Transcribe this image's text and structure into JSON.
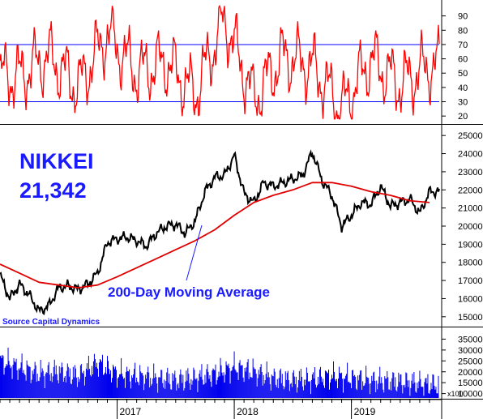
{
  "chart_data": [
    {
      "type": "line",
      "panel": "oscillator",
      "ylim": [
        15,
        100
      ],
      "yticks": [
        20,
        30,
        40,
        50,
        60,
        70,
        80,
        90
      ],
      "reference_lines": [
        70,
        30
      ],
      "colors": {
        "series": "#ff0000",
        "reference": "#0000ff"
      },
      "x": [
        "2016-03",
        "2016-06",
        "2016-09",
        "2016-12",
        "2017-03",
        "2017-06",
        "2017-09",
        "2017-12",
        "2018-03",
        "2018-06",
        "2018-09",
        "2018-12",
        "2019-03",
        "2019-06",
        "2019-09"
      ],
      "values": [
        48,
        62,
        40,
        78,
        50,
        58,
        35,
        88,
        32,
        62,
        55,
        25,
        60,
        42,
        55
      ]
    },
    {
      "type": "line",
      "panel": "price",
      "title": "NIKKEI",
      "subtitle": "21,342",
      "source": "Source Capital Dynamics",
      "annotation": "200-Day Moving Average",
      "ylim": [
        14500,
        25500
      ],
      "yticks": [
        15000,
        16000,
        17000,
        18000,
        19000,
        20000,
        21000,
        22000,
        23000,
        24000,
        25000
      ],
      "ytick_labels": [
        "15000",
        "16000",
        "17000",
        "18000",
        "19000",
        "20000",
        "21000",
        "22000",
        "23000",
        "24000",
        "25000"
      ],
      "colors": {
        "price": "#000000",
        "moving_average": "#e00000",
        "text": "#1a1aff"
      },
      "series": [
        {
          "name": "Nikkei",
          "x": [
            "2016-01",
            "2016-02",
            "2016-03",
            "2016-04",
            "2016-05",
            "2016-06",
            "2016-07",
            "2016-08",
            "2016-09",
            "2016-10",
            "2016-11",
            "2016-12",
            "2017-01",
            "2017-02",
            "2017-03",
            "2017-04",
            "2017-05",
            "2017-06",
            "2017-07",
            "2017-08",
            "2017-09",
            "2017-10",
            "2017-11",
            "2017-12",
            "2018-01",
            "2018-02",
            "2018-03",
            "2018-04",
            "2018-05",
            "2018-06",
            "2018-07",
            "2018-08",
            "2018-09",
            "2018-10",
            "2018-11",
            "2018-12",
            "2019-01",
            "2019-02",
            "2019-03",
            "2019-04",
            "2019-05",
            "2019-06",
            "2019-07",
            "2019-08",
            "2019-09"
          ],
          "values": [
            17300,
            16000,
            16800,
            16200,
            15300,
            15600,
            16600,
            16700,
            16500,
            16800,
            17400,
            19100,
            19300,
            19400,
            19200,
            18900,
            19600,
            20000,
            20100,
            19600,
            20300,
            21900,
            22700,
            22800,
            23900,
            21800,
            21300,
            22400,
            22200,
            22400,
            22600,
            22800,
            24100,
            22500,
            21700,
            20000,
            20600,
            21300,
            21200,
            22200,
            21100,
            21300,
            21500,
            20700,
            21900
          ]
        },
        {
          "name": "200-Day Moving Average",
          "x": [
            "2016-01",
            "2016-03",
            "2016-05",
            "2016-07",
            "2016-09",
            "2016-11",
            "2017-01",
            "2017-03",
            "2017-05",
            "2017-07",
            "2017-09",
            "2017-11",
            "2018-01",
            "2018-03",
            "2018-05",
            "2018-07",
            "2018-09",
            "2018-11",
            "2019-01",
            "2019-03",
            "2019-05",
            "2019-07",
            "2019-09"
          ],
          "values": [
            17900,
            17400,
            16900,
            16750,
            16600,
            16750,
            17200,
            17700,
            18200,
            18700,
            19200,
            19800,
            20600,
            21300,
            21700,
            22000,
            22400,
            22400,
            22200,
            21900,
            21700,
            21400,
            21300
          ]
        }
      ]
    },
    {
      "type": "bar",
      "panel": "volume",
      "unit": "x100",
      "ylim": [
        8000,
        40000
      ],
      "yticks": [
        10000,
        15000,
        20000,
        25000,
        30000,
        35000
      ],
      "ytick_labels": [
        "10000",
        "15000",
        "20000",
        "25000",
        "30000",
        "35000"
      ],
      "colors": {
        "bars": "#0000ee"
      },
      "x": [
        "2016-01",
        "2016-03",
        "2016-05",
        "2016-07",
        "2016-09",
        "2016-11",
        "2017-01",
        "2017-03",
        "2017-05",
        "2017-07",
        "2017-09",
        "2017-11",
        "2018-01",
        "2018-03",
        "2018-05",
        "2018-07",
        "2018-09",
        "2018-11",
        "2019-01",
        "2019-03",
        "2019-05",
        "2019-07",
        "2019-09"
      ],
      "values": [
        25000,
        22000,
        19000,
        20000,
        18000,
        24000,
        19000,
        18000,
        17000,
        16000,
        17000,
        19000,
        22000,
        20000,
        17000,
        16000,
        16500,
        18000,
        17000,
        16000,
        15500,
        15000,
        14000
      ],
      "xtick_labels": [
        "2017",
        "2018",
        "2019"
      ]
    }
  ]
}
